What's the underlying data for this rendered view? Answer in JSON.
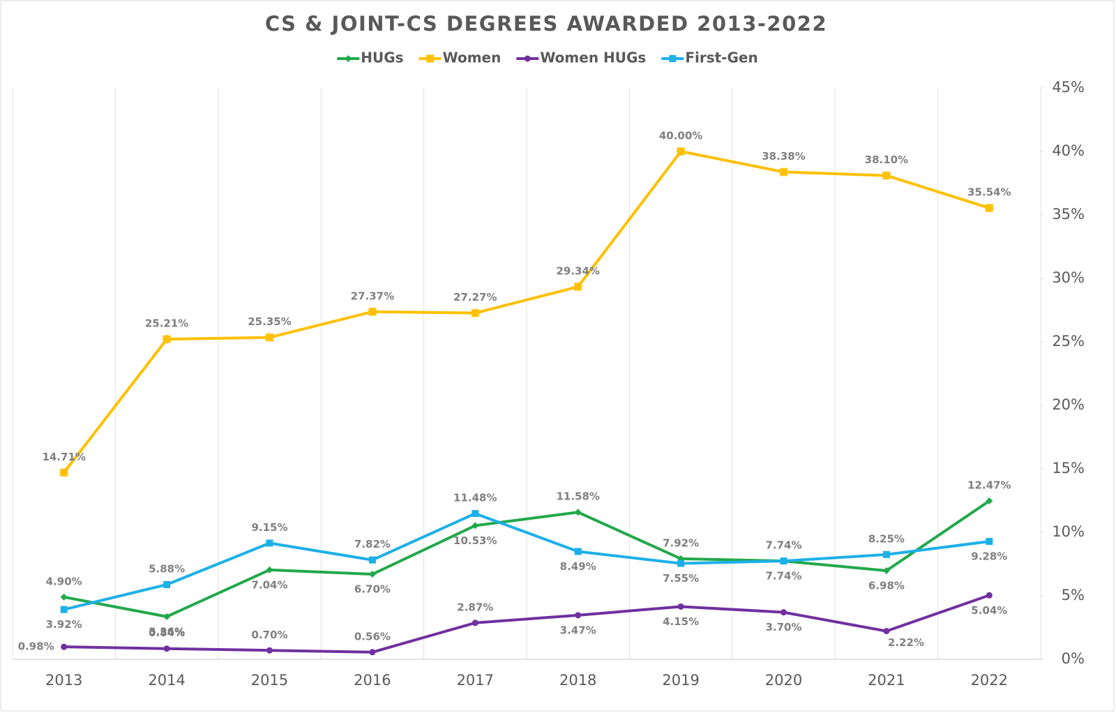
{
  "chart_data": {
    "type": "line",
    "title": "CS & JOINT-CS DEGREES AWARDED 2013-2022",
    "categories": [
      "2013",
      "2014",
      "2015",
      "2016",
      "2017",
      "2018",
      "2019",
      "2020",
      "2021",
      "2022"
    ],
    "series": [
      {
        "name": "HUGs",
        "color": "#22a84b",
        "marker": "diamond",
        "values": [
          4.9,
          3.36,
          7.04,
          6.7,
          10.53,
          11.58,
          7.92,
          7.74,
          6.98,
          12.47
        ],
        "value_labels": [
          "4.90%",
          "3.36%",
          "7.04%",
          "6.70%",
          "10.53%",
          "11.58%",
          "7.92%",
          "7.74%",
          "6.98%",
          "12.47%"
        ]
      },
      {
        "name": "Women",
        "color": "#ffc000",
        "marker": "cross",
        "values": [
          14.71,
          25.21,
          25.35,
          27.37,
          27.27,
          29.34,
          40.0,
          38.38,
          38.1,
          35.54
        ],
        "value_labels": [
          "14.71%",
          "25.21%",
          "25.35%",
          "27.37%",
          "27.27%",
          "29.34%",
          "40.00%",
          "38.38%",
          "38.10%",
          "35.54%"
        ]
      },
      {
        "name": "Women HUGs",
        "color": "#7030a0",
        "marker": "circle",
        "values": [
          0.98,
          0.84,
          0.7,
          0.56,
          2.87,
          3.47,
          4.15,
          3.7,
          2.22,
          5.04
        ],
        "value_labels": [
          "0.98%",
          "0.84%",
          "0.70%",
          "0.56%",
          "2.87%",
          "3.47%",
          "4.15%",
          "3.70%",
          "2.22%",
          "5.04%"
        ]
      },
      {
        "name": "First-Gen",
        "color": "#1cb0e8",
        "marker": "square",
        "values": [
          3.92,
          5.88,
          9.15,
          7.82,
          11.48,
          8.49,
          7.55,
          7.74,
          8.25,
          9.28
        ],
        "value_labels": [
          "3.92%",
          "5.88%",
          "9.15%",
          "7.82%",
          "11.48%",
          "8.49%",
          "7.55%",
          "7.74%",
          "8.25%",
          "9.28%"
        ]
      }
    ],
    "y_axis_side": "right",
    "ylim": [
      0,
      45
    ],
    "yticks": [
      {
        "value": 0,
        "label": "0%"
      },
      {
        "value": 5,
        "label": "5%"
      },
      {
        "value": 10,
        "label": "10%"
      },
      {
        "value": 15,
        "label": "15%"
      },
      {
        "value": 20,
        "label": "20%"
      },
      {
        "value": 25,
        "label": "25%"
      },
      {
        "value": 30,
        "label": "30%"
      },
      {
        "value": 35,
        "label": "35%"
      },
      {
        "value": 40,
        "label": "40%"
      },
      {
        "value": 45,
        "label": "45%"
      }
    ],
    "legend": "top"
  }
}
